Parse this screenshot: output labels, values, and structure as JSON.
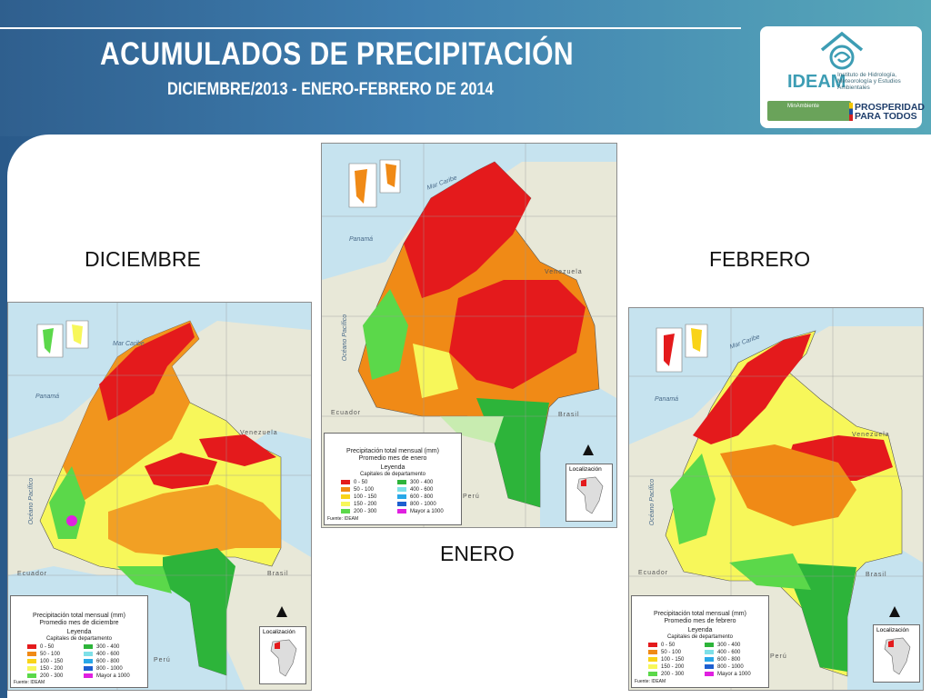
{
  "header": {
    "title": "ACUMULADOS DE PRECIPITACIÓN",
    "subtitle": "DICIEMBRE/2013 - ENERO-FEBRERO DE 2014"
  },
  "logo": {
    "name": "IDEAM",
    "institute": "Instituto de Hidrología, Meteorología y Estudios Ambientales",
    "ministry": "MinAmbiente",
    "slogan": "PROSPERIDAD PARA TODOS"
  },
  "maps": {
    "dic_label": "DICIEMBRE",
    "ene_label": "ENERO",
    "feb_label": "FEBRERO"
  },
  "map_text": {
    "mar_caribe": "Mar Caribe",
    "panama": "Panamá",
    "venezuela": "Venezuela",
    "oceano": "Océano Pacífico",
    "ecuador": "Ecuador",
    "peru": "Perú",
    "brasil": "Brasil"
  },
  "legend": {
    "title": "Precipitación total mensual (mm)",
    "dic_sub": "Promedio mes de diciembre",
    "ene_sub": "Promedio mes de enero",
    "feb_sub": "Promedio mes de febrero",
    "leyenda": "Leyenda",
    "capitales": "Capitales de departamento",
    "items": [
      "0 - 50",
      "50 - 100",
      "100 - 150",
      "150 - 200",
      "200 - 300",
      "300 - 400",
      "400 - 600",
      "600 - 800",
      "800 - 1000",
      "Mayor a 1000"
    ],
    "colors": [
      "#e41a1c",
      "#f08a16",
      "#f9d318",
      "#f7f75a",
      "#5bd84a",
      "#2db43a",
      "#7ee0e8",
      "#29a8e8",
      "#1d5fd0",
      "#e020e0"
    ],
    "source": "Fuente: IDEAM",
    "localizacion": "Localización"
  }
}
